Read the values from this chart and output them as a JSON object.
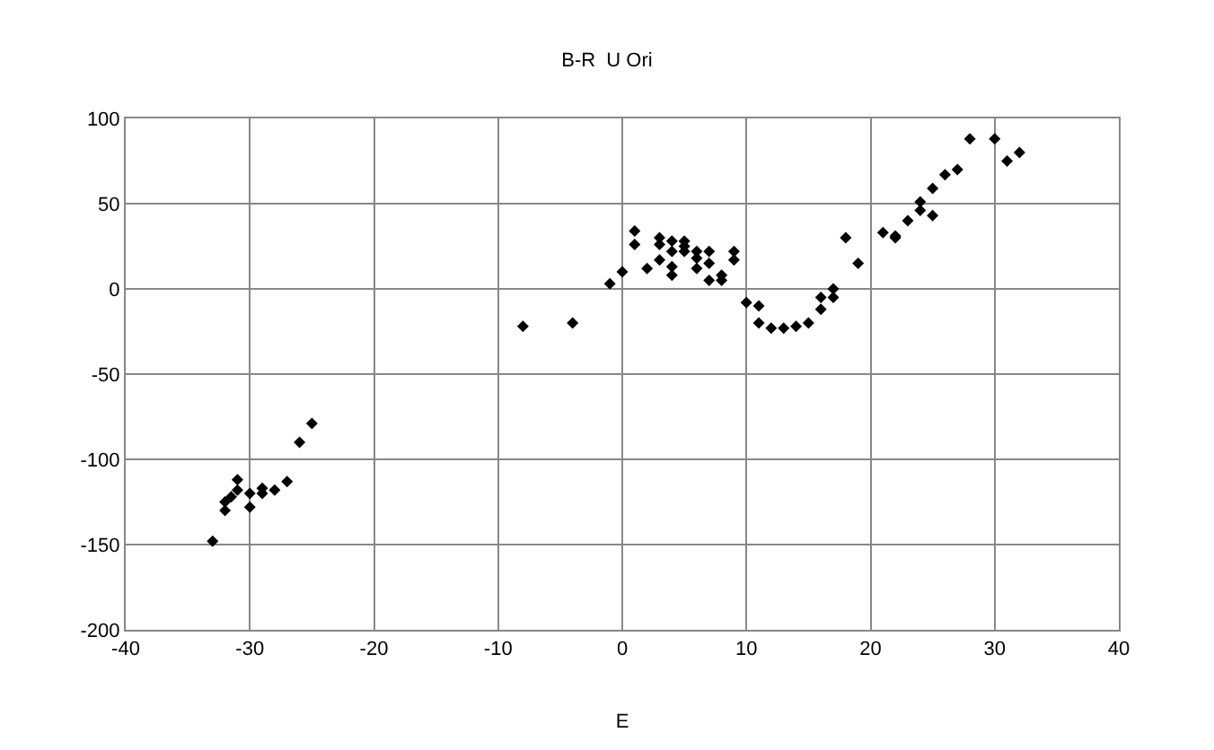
{
  "chart_data": {
    "type": "scatter",
    "title": "B-R  U Ori",
    "xlabel": "E",
    "x": [
      -33,
      -32,
      -32,
      -31.5,
      -31,
      -31,
      -30,
      -30,
      -29,
      -29,
      -28,
      -27,
      -26,
      -25,
      -8,
      -4,
      -1,
      0,
      1,
      1,
      2,
      3,
      3,
      3,
      4,
      4,
      4,
      4,
      5,
      5,
      5,
      6,
      6,
      6,
      7,
      7,
      7,
      8,
      8,
      9,
      9,
      10,
      11,
      11,
      12,
      13,
      14,
      15,
      16,
      16,
      17,
      17,
      18,
      19,
      21,
      22,
      22,
      23,
      24,
      24,
      25,
      25,
      26,
      27,
      28,
      30,
      31,
      32
    ],
    "values": [
      -148,
      -130,
      -125,
      -122,
      -112,
      -118,
      -120,
      -128,
      -117,
      -120,
      -118,
      -113,
      -90,
      -79,
      -22,
      -20,
      3,
      10,
      34,
      26,
      12,
      30,
      26,
      17,
      28,
      22,
      8,
      13,
      28,
      25,
      22,
      22,
      18,
      12,
      22,
      15,
      5,
      8,
      5,
      22,
      17,
      -8,
      -10,
      -20,
      -23,
      -23,
      -22,
      -20,
      -12,
      -5,
      -5,
      0,
      30,
      15,
      33,
      31,
      30,
      40,
      46,
      51,
      59,
      43,
      67,
      70,
      88,
      88,
      75,
      80
    ],
    "color": "#000000",
    "marker": "diamond",
    "xlim": [
      -40,
      40
    ],
    "xticks": [
      -40,
      -30,
      -20,
      -10,
      0,
      10,
      20,
      30,
      40
    ],
    "ylim": [
      -200,
      100
    ],
    "yticks": [
      -200,
      -150,
      -100,
      -50,
      0,
      50,
      100
    ],
    "grid": true
  }
}
